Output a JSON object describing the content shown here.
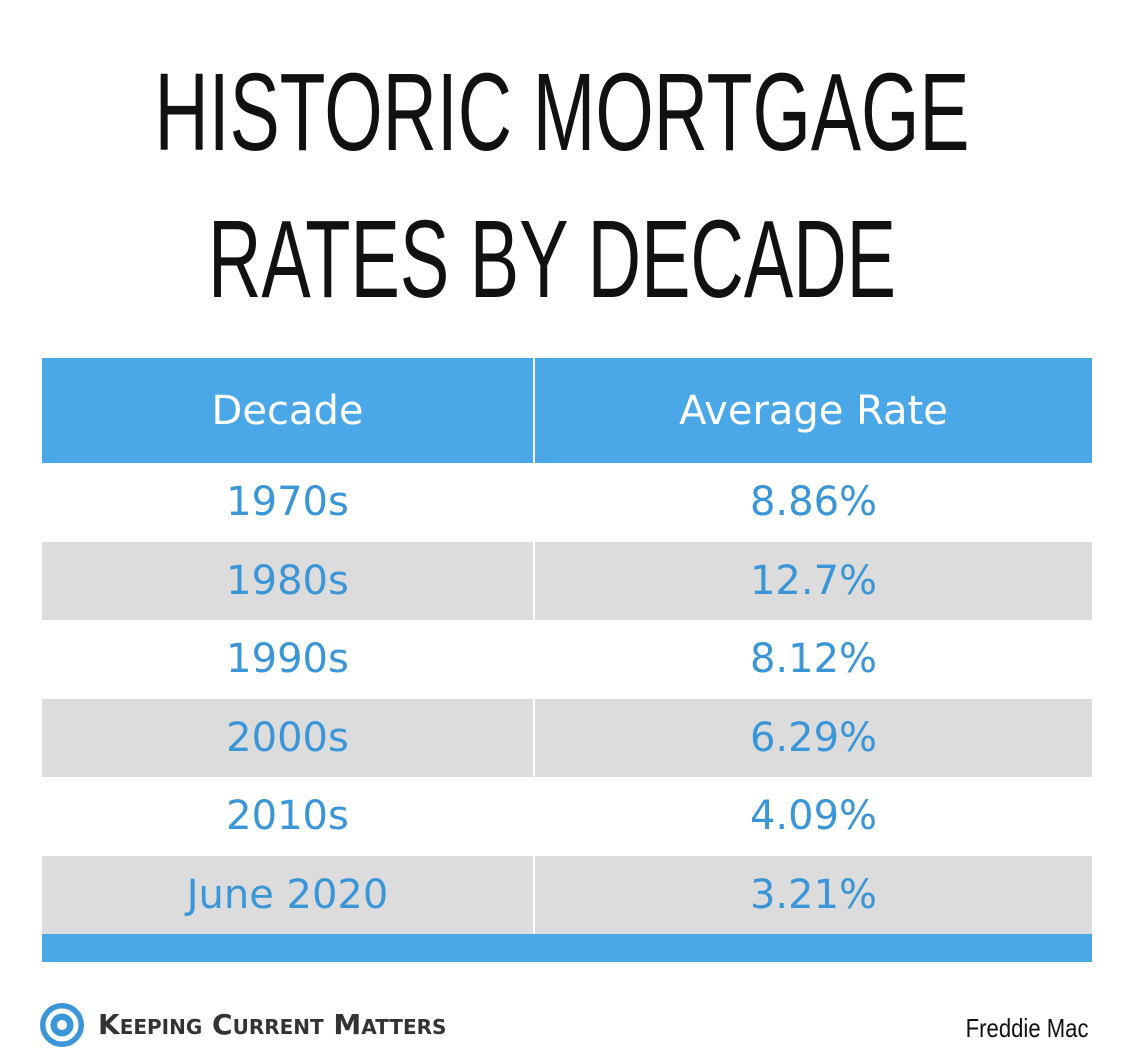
{
  "header": {
    "title_lines": [
      "HISTORIC MORTGAGE",
      "RATES BY DECADE"
    ]
  },
  "table": {
    "columns": [
      "Decade",
      "Average Rate"
    ],
    "rows": [
      [
        "1970s",
        "8.86%"
      ],
      [
        "1980s",
        "12.7%"
      ],
      [
        "1990s",
        "8.12%"
      ],
      [
        "2000s",
        "6.29%"
      ],
      [
        "2010s",
        "4.09%"
      ],
      [
        "June 2020",
        "3.21%"
      ]
    ]
  },
  "footer": {
    "brand": "Keeping Current Matters",
    "source": "Freddie Mac"
  }
}
